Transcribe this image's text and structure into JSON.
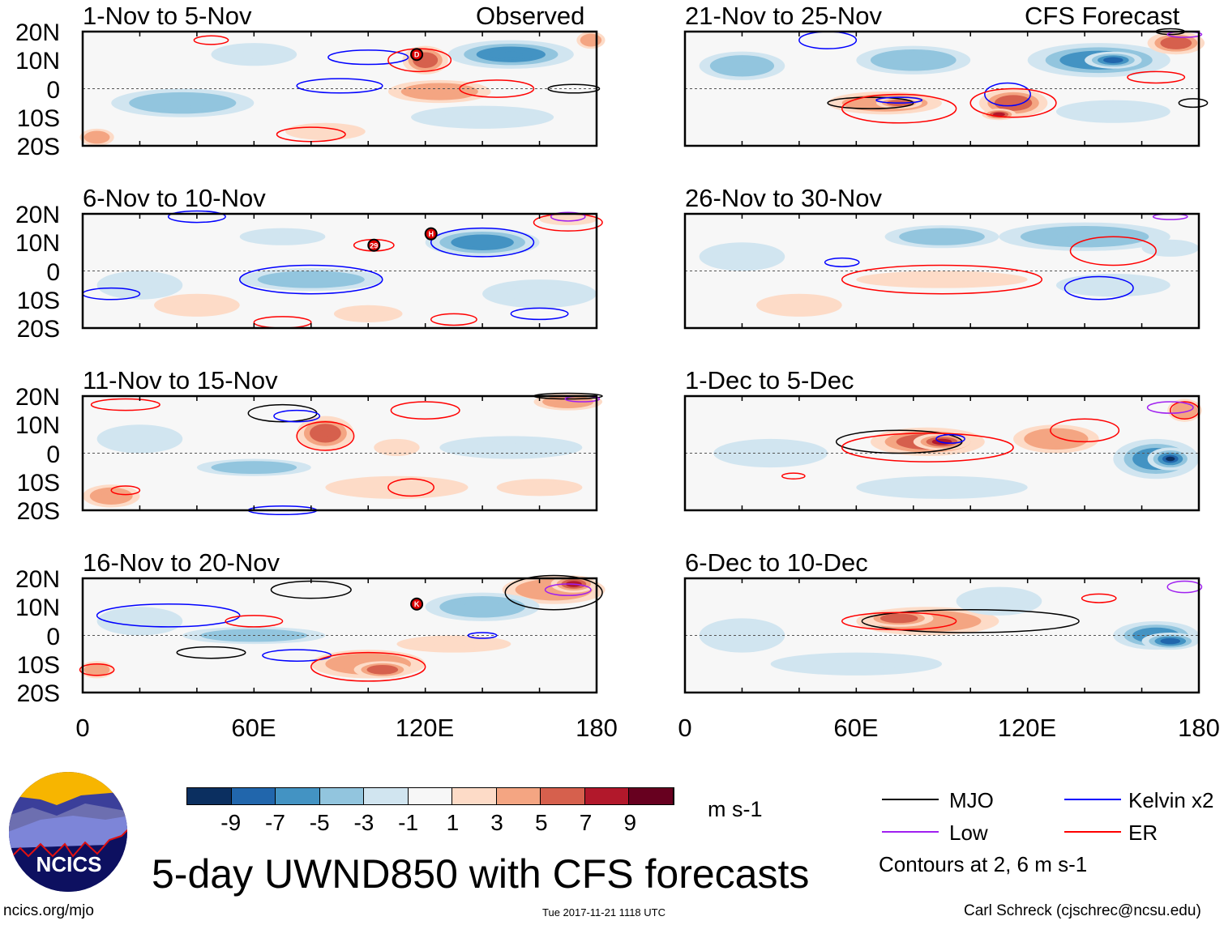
{
  "title": "5-day UWND850 with CFS forecasts",
  "source_url": "ncics.org/mjo",
  "timestamp": "Tue 2017-11-21 1118 UTC",
  "author": "Carl Schreck (cjschrec@ncsu.edu)",
  "logo_text": "NCICS",
  "units": "m s-1",
  "colorbar": {
    "labels": [
      "-9",
      "-7",
      "-5",
      "-3",
      "-1",
      "1",
      "3",
      "5",
      "7",
      "9"
    ],
    "colors": [
      "#0b2f60",
      "#2166ac",
      "#4393c3",
      "#92c5de",
      "#d1e5f0",
      "#f7f7f7",
      "#fddbc7",
      "#f4a582",
      "#d6604d",
      "#b2182b",
      "#67001f"
    ]
  },
  "legend": {
    "items": [
      {
        "label": "MJO",
        "color": "#000000"
      },
      {
        "label": "Kelvin x2",
        "color": "#0000ff"
      },
      {
        "label": "Low",
        "color": "#a020f0"
      },
      {
        "label": "ER",
        "color": "#ff0000"
      }
    ],
    "note": "Contours at 2, 6 m s-1"
  },
  "chart_data": {
    "type": "heatmap",
    "variable": "850-hPa zonal wind anomaly",
    "lat_labels": [
      "20N",
      "10N",
      "0",
      "10S",
      "20S"
    ],
    "lon_labels": [
      "0",
      "60E",
      "120E",
      "180"
    ],
    "xlim": [
      0,
      180
    ],
    "ylim": [
      -20,
      20
    ],
    "columns": [
      {
        "label": "Observed"
      },
      {
        "label": "CFS Forecast"
      }
    ],
    "panels": [
      {
        "title": "1-Nov to 5-Nov",
        "column": 0,
        "fill": [
          [
            150,
            12,
            22,
            5,
            -5
          ],
          [
            35,
            -5,
            25,
            5,
            -3
          ],
          [
            140,
            -10,
            25,
            4,
            -2
          ],
          [
            60,
            12,
            15,
            4,
            -2
          ],
          [
            120,
            10,
            8,
            5,
            7
          ],
          [
            125,
            -1,
            18,
            4,
            4
          ],
          [
            85,
            -15,
            14,
            3,
            3
          ],
          [
            5,
            -17,
            6,
            3,
            5
          ],
          [
            178,
            17,
            5,
            3,
            5
          ]
        ],
        "contours": [
          [
            "Kelvin",
            90,
            1,
            15,
            2.5
          ],
          [
            "Kelvin",
            100,
            11,
            14,
            2.5
          ],
          [
            "ER",
            145,
            0,
            13,
            3
          ],
          [
            "ER",
            80,
            -16,
            12,
            2.5
          ],
          [
            "ER",
            118,
            10,
            11,
            4
          ],
          [
            "MJO",
            172,
            0,
            9,
            1.5
          ],
          [
            "ER",
            45,
            17,
            6,
            1.5
          ]
        ],
        "storms": [
          {
            "label": "D",
            "lon": 117,
            "lat": 12
          }
        ]
      },
      {
        "title": "6-Nov to 10-Nov",
        "column": 0,
        "fill": [
          [
            140,
            10,
            20,
            5,
            -5
          ],
          [
            80,
            -3,
            25,
            4,
            -4
          ],
          [
            20,
            -5,
            15,
            5,
            -2
          ],
          [
            160,
            -8,
            20,
            5,
            -2
          ],
          [
            70,
            12,
            15,
            3,
            -2
          ],
          [
            40,
            -12,
            15,
            4,
            2
          ],
          [
            100,
            -15,
            12,
            3,
            2
          ],
          [
            170,
            18,
            10,
            2,
            3
          ]
        ],
        "contours": [
          [
            "Kelvin",
            140,
            10,
            18,
            5
          ],
          [
            "Kelvin",
            80,
            -3,
            25,
            5
          ],
          [
            "Kelvin",
            160,
            -15,
            10,
            2
          ],
          [
            "ER",
            102,
            9,
            7,
            2
          ],
          [
            "ER",
            70,
            -18,
            10,
            2
          ],
          [
            "ER",
            130,
            -17,
            8,
            2
          ],
          [
            "ER",
            170,
            17,
            12,
            3
          ],
          [
            "Low",
            170,
            19,
            6,
            1.5
          ],
          [
            "Kelvin",
            10,
            -8,
            10,
            2
          ],
          [
            "Kelvin",
            40,
            19,
            10,
            2
          ]
        ],
        "storms": [
          {
            "label": "29",
            "lon": 102,
            "lat": 9
          },
          {
            "label": "H",
            "lon": 122,
            "lat": 13
          }
        ]
      },
      {
        "title": "11-Nov to 15-Nov",
        "column": 0,
        "fill": [
          [
            85,
            7,
            10,
            6,
            7
          ],
          [
            110,
            2,
            8,
            3,
            3
          ],
          [
            60,
            -5,
            20,
            3,
            -3
          ],
          [
            150,
            2,
            25,
            4,
            -2
          ],
          [
            110,
            -12,
            25,
            4,
            3
          ],
          [
            160,
            -12,
            15,
            3,
            2
          ],
          [
            10,
            -15,
            10,
            4,
            4
          ],
          [
            20,
            5,
            15,
            5,
            -2
          ],
          [
            170,
            18,
            12,
            3,
            4
          ]
        ],
        "contours": [
          [
            "MJO",
            70,
            14,
            12,
            3
          ],
          [
            "Kelvin",
            75,
            13,
            8,
            2
          ],
          [
            "ER",
            85,
            6,
            10,
            5
          ],
          [
            "ER",
            115,
            -12,
            8,
            3
          ],
          [
            "ER",
            120,
            15,
            12,
            3
          ],
          [
            "ER",
            15,
            17,
            12,
            2
          ],
          [
            "ER",
            15,
            -13,
            5,
            1.5
          ],
          [
            "MJO",
            170,
            20,
            12,
            1
          ],
          [
            "Low",
            175,
            19,
            6,
            1
          ],
          [
            "Kelvin",
            70,
            -20,
            12,
            1.5
          ]
        ],
        "storms": []
      },
      {
        "title": "16-Nov to 20-Nov",
        "column": 0,
        "fill": [
          [
            165,
            16,
            18,
            5,
            5
          ],
          [
            172,
            18,
            8,
            3,
            9
          ],
          [
            100,
            -10,
            20,
            5,
            4
          ],
          [
            105,
            -12,
            10,
            3,
            7
          ],
          [
            140,
            10,
            20,
            5,
            -4
          ],
          [
            130,
            -3,
            20,
            3,
            3
          ],
          [
            60,
            0,
            25,
            3,
            -3
          ],
          [
            20,
            5,
            15,
            5,
            -2
          ],
          [
            5,
            -12,
            6,
            3,
            4
          ]
        ],
        "contours": [
          [
            "MJO",
            165,
            15,
            17,
            6
          ],
          [
            "MJO",
            80,
            16,
            14,
            3
          ],
          [
            "MJO",
            45,
            -6,
            12,
            2
          ],
          [
            "Kelvin",
            30,
            7,
            25,
            4
          ],
          [
            "Kelvin",
            140,
            0,
            5,
            1
          ],
          [
            "Kelvin",
            75,
            -7,
            12,
            2
          ],
          [
            "ER",
            100,
            -11,
            20,
            5
          ],
          [
            "ER",
            60,
            5,
            10,
            2
          ],
          [
            "ER",
            5,
            -12,
            6,
            2
          ],
          [
            "Low",
            170,
            16,
            8,
            2
          ]
        ],
        "storms": [
          {
            "label": "K",
            "lon": 117,
            "lat": 11
          }
        ]
      },
      {
        "title": "21-Nov to 25-Nov",
        "column": 1,
        "fill": [
          [
            145,
            10,
            25,
            6,
            -5
          ],
          [
            150,
            10,
            10,
            3,
            -8
          ],
          [
            80,
            10,
            20,
            5,
            -4
          ],
          [
            70,
            -5,
            20,
            4,
            5
          ],
          [
            75,
            -5,
            8,
            2,
            7
          ],
          [
            115,
            -5,
            12,
            5,
            6
          ],
          [
            110,
            -9,
            6,
            2,
            8
          ],
          [
            172,
            16,
            10,
            4,
            6
          ],
          [
            20,
            8,
            15,
            5,
            -3
          ],
          [
            150,
            -8,
            20,
            4,
            -2
          ]
        ],
        "contours": [
          [
            "MJO",
            65,
            -5,
            15,
            2
          ],
          [
            "ER",
            75,
            -7,
            20,
            5
          ],
          [
            "Kelvin",
            113,
            -2,
            8,
            4
          ],
          [
            "ER",
            115,
            -5,
            15,
            5
          ],
          [
            "ER",
            165,
            4,
            10,
            2
          ],
          [
            "MJO",
            170,
            20,
            5,
            1
          ],
          [
            "Low",
            175,
            19,
            6,
            1
          ],
          [
            "Kelvin",
            50,
            17,
            10,
            3
          ],
          [
            "MJO",
            178,
            -5,
            5,
            1.5
          ],
          [
            "Kelvin",
            75,
            -4,
            8,
            1
          ]
        ],
        "storms": []
      },
      {
        "title": "26-Nov to 30-Nov",
        "column": 1,
        "fill": [
          [
            140,
            12,
            30,
            5,
            -4
          ],
          [
            90,
            12,
            20,
            4,
            -3
          ],
          [
            20,
            5,
            15,
            5,
            -2
          ],
          [
            90,
            -3,
            30,
            3,
            3
          ],
          [
            150,
            -5,
            20,
            4,
            -2
          ],
          [
            40,
            -12,
            15,
            4,
            2
          ],
          [
            170,
            8,
            10,
            3,
            -2
          ]
        ],
        "contours": [
          [
            "ER",
            90,
            -3,
            35,
            5
          ],
          [
            "ER",
            150,
            7,
            15,
            5
          ],
          [
            "Kelvin",
            55,
            3,
            6,
            1.5
          ],
          [
            "Kelvin",
            145,
            -6,
            12,
            4
          ],
          [
            "Low",
            170,
            19,
            6,
            1
          ]
        ],
        "storms": []
      },
      {
        "title": "1-Dec to 5-Dec",
        "column": 1,
        "fill": [
          [
            85,
            4,
            20,
            5,
            6
          ],
          [
            90,
            4,
            10,
            3,
            9
          ],
          [
            165,
            -2,
            15,
            7,
            -6
          ],
          [
            170,
            -2,
            8,
            4,
            -9
          ],
          [
            130,
            5,
            15,
            5,
            4
          ],
          [
            30,
            0,
            20,
            5,
            -2
          ],
          [
            90,
            -12,
            30,
            4,
            -2
          ],
          [
            175,
            15,
            6,
            4,
            5
          ]
        ],
        "contours": [
          [
            "MJO",
            75,
            4,
            22,
            4
          ],
          [
            "ER",
            85,
            2,
            30,
            5
          ],
          [
            "Kelvin",
            93,
            5,
            5,
            1.5
          ],
          [
            "ER",
            140,
            8,
            12,
            4
          ],
          [
            "ER",
            175,
            15,
            5,
            3
          ],
          [
            "Low",
            170,
            16,
            8,
            2
          ],
          [
            "ER",
            38,
            -8,
            4,
            1
          ]
        ],
        "storms": []
      },
      {
        "title": "6-Dec to 10-Dec",
        "column": 1,
        "fill": [
          [
            85,
            5,
            25,
            5,
            5
          ],
          [
            75,
            6,
            12,
            3,
            7
          ],
          [
            165,
            0,
            15,
            5,
            -6
          ],
          [
            170,
            -2,
            10,
            3,
            -8
          ],
          [
            60,
            -10,
            30,
            4,
            -2
          ],
          [
            110,
            12,
            15,
            5,
            -2
          ],
          [
            20,
            0,
            15,
            6,
            -2
          ]
        ],
        "contours": [
          [
            "MJO",
            100,
            5,
            38,
            4
          ],
          [
            "ER",
            75,
            5,
            20,
            3
          ],
          [
            "ER",
            145,
            13,
            6,
            1.5
          ],
          [
            "Low",
            175,
            17,
            6,
            2
          ]
        ],
        "storms": []
      }
    ]
  }
}
